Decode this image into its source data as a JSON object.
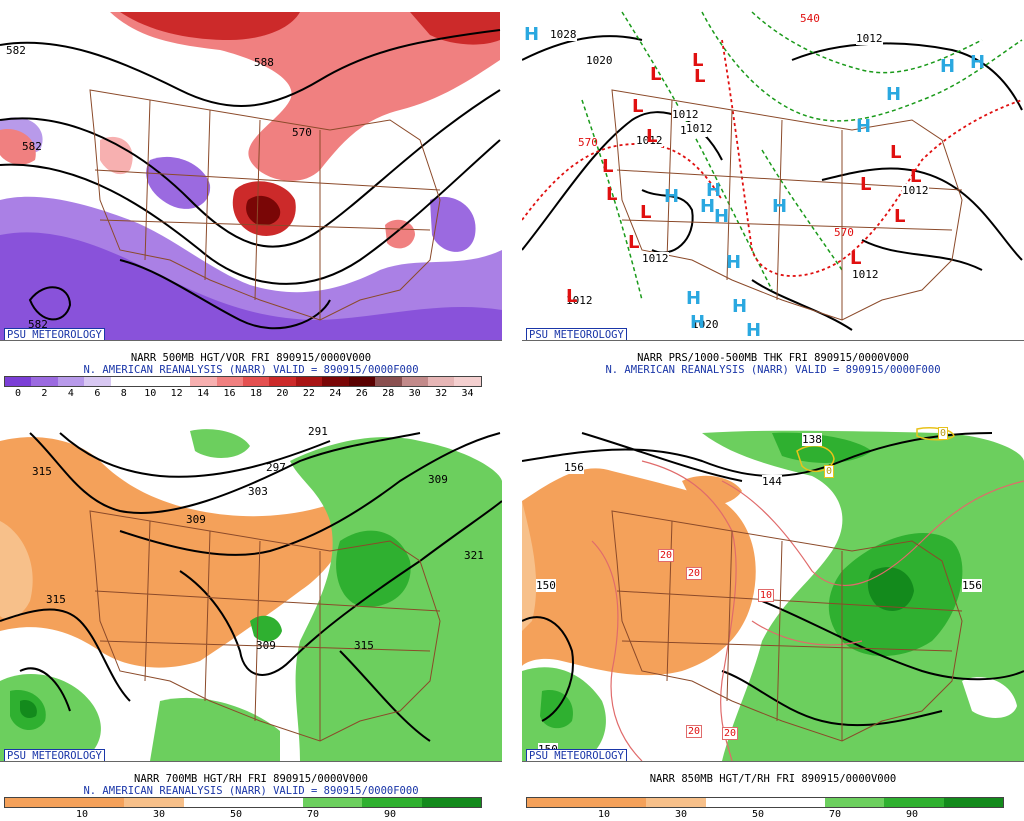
{
  "panels": [
    {
      "id": "p500",
      "badge": "PSU METEOROLOGY",
      "line1": "NARR 500MB HGT/VOR FRI 890915/0000V000",
      "line2": "N. AMERICAN REANALYSIS (NARR) VALID = 890915/0000F000",
      "colorbar": {
        "colors": [
          "#7b3fd6",
          "#9b6ae0",
          "#b89aea",
          "#d8c8f2",
          "#ffffff",
          "#ffffff",
          "#ffffff",
          "#f7b0b0",
          "#f08080",
          "#e45050",
          "#cc2a2a",
          "#a81414",
          "#7a0606",
          "#5a0000",
          "#8a5050",
          "#c28a8a",
          "#e6b6b6",
          "#f4d0d0"
        ],
        "ticks": [
          "0",
          "2",
          "4",
          "6",
          "8",
          "10",
          "12",
          "14",
          "16",
          "18",
          "20",
          "22",
          "24",
          "26",
          "28",
          "30",
          "32",
          "34"
        ]
      },
      "contour_labels": [
        "582",
        "588",
        "570",
        "582",
        "582"
      ]
    },
    {
      "id": "pthk",
      "badge": "PSU METEOROLOGY",
      "line1": "NARR PRS/1000-500MB THK FRI 890915/0000V000",
      "line2": "N. AMERICAN REANALYSIS (NARR) VALID = 890915/0000F000",
      "contour_labels": [
        "1028",
        "1020",
        "1012",
        "1012",
        "1012",
        "1012",
        "1012",
        "1012",
        "1012",
        "1020",
        "570",
        "570",
        "540",
        "1012",
        "1012"
      ],
      "high_symbol": "H",
      "low_symbol": "L"
    },
    {
      "id": "p700",
      "badge": "PSU METEOROLOGY",
      "line1": "NARR 700MB HGT/RH FRI 890915/0000V000",
      "line2": "N. AMERICAN REANALYSIS (NARR) VALID = 890915/0000F000",
      "colorbar": {
        "colors": [
          "#f4a15a",
          "#f4a15a",
          "#f7c08a",
          "#ffffff",
          "#ffffff",
          "#6ccf5e",
          "#2fb030",
          "#138a1c"
        ],
        "ticks": [
          "10",
          "30",
          "50",
          "70",
          "90"
        ]
      },
      "contour_labels": [
        "315",
        "315",
        "297",
        "303",
        "309",
        "309",
        "315",
        "321",
        "309",
        "291"
      ]
    },
    {
      "id": "p850",
      "badge": "PSU METEOROLOGY",
      "line1": "NARR 850MB HGT/T/RH FRI 890915/0000V000",
      "line2": "",
      "colorbar": {
        "colors": [
          "#f4a15a",
          "#f4a15a",
          "#f7c08a",
          "#ffffff",
          "#ffffff",
          "#6ccf5e",
          "#2fb030",
          "#138a1c"
        ],
        "ticks": [
          "10",
          "30",
          "50",
          "70",
          "90"
        ]
      },
      "contour_labels": [
        "156",
        "150",
        "150",
        "144",
        "138",
        "156",
        "20",
        "20",
        "10",
        "20",
        "20",
        "0",
        "0"
      ]
    }
  ]
}
